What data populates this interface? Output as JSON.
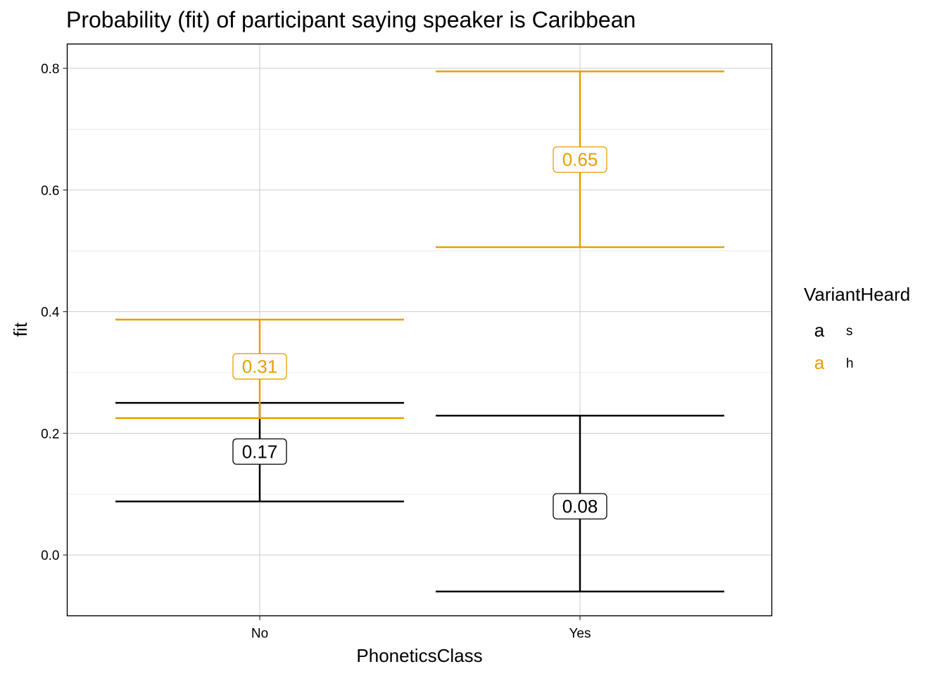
{
  "chart_data": {
    "type": "errorbar",
    "title": "Probability (fit) of participant saying speaker is Caribbean",
    "xlabel": "PhoneticsClass",
    "ylabel": "fit",
    "categories": [
      "No",
      "Yes"
    ],
    "ylim": [
      -0.1,
      0.84
    ],
    "yticks": [
      0.0,
      0.2,
      0.4,
      0.6,
      0.8
    ],
    "ytick_labels": [
      "0.0",
      "0.2",
      "0.4",
      "0.6",
      "0.8"
    ],
    "grid": true,
    "legend": {
      "title": "VariantHeard",
      "position": "right",
      "key_glyph": "a"
    },
    "series": [
      {
        "name": "s",
        "color": "#000000",
        "points": [
          {
            "x": "No",
            "fit": 0.17,
            "lower": 0.088,
            "upper": 0.25,
            "label": "0.17"
          },
          {
            "x": "Yes",
            "fit": 0.08,
            "lower": -0.06,
            "upper": 0.229,
            "label": "0.08"
          }
        ]
      },
      {
        "name": "h",
        "color": "#E69F00",
        "points": [
          {
            "x": "No",
            "fit": 0.31,
            "lower": 0.225,
            "upper": 0.387,
            "label": "0.31"
          },
          {
            "x": "Yes",
            "fit": 0.65,
            "lower": 0.506,
            "upper": 0.795,
            "label": "0.65"
          }
        ]
      }
    ]
  }
}
